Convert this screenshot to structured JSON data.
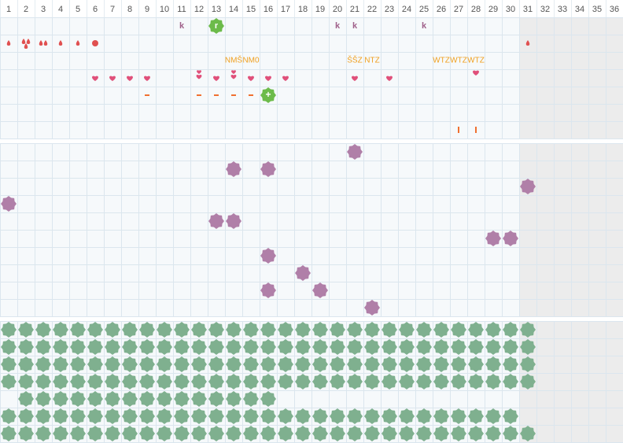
{
  "days": [
    "1",
    "2",
    "3",
    "4",
    "5",
    "6",
    "7",
    "8",
    "9",
    "10",
    "11",
    "12",
    "13",
    "14",
    "15",
    "16",
    "17",
    "18",
    "19",
    "20",
    "21",
    "22",
    "23",
    "24",
    "25",
    "26",
    "27",
    "28",
    "29",
    "30",
    "31",
    "32",
    "33",
    "34",
    "35",
    "36"
  ],
  "letters": [
    {
      "day": 11,
      "text": "k"
    },
    {
      "day": 13,
      "text": "r"
    },
    {
      "day": 20,
      "text": "k"
    },
    {
      "day": 21,
      "text": "k"
    },
    {
      "day": 25,
      "text": "k"
    }
  ],
  "drops": [
    {
      "day": 1,
      "count": 1
    },
    {
      "day": 2,
      "count": 3
    },
    {
      "day": 3,
      "count": 2
    },
    {
      "day": 4,
      "count": 1
    },
    {
      "day": 5,
      "count": 1
    },
    {
      "day": 31,
      "count": 1
    }
  ],
  "spots": [
    6
  ],
  "notes": [
    {
      "day": 14,
      "text": "NMŠ"
    },
    {
      "day": 15,
      "text": "NM0"
    },
    {
      "day": 21,
      "text": "ŠŠZ"
    },
    {
      "day": 22,
      "text": "NTZ"
    },
    {
      "day": 26,
      "text": "WTZ"
    },
    {
      "day": 27,
      "text": "WTZ"
    },
    {
      "day": 28,
      "text": "WTZ"
    }
  ],
  "hearts": [
    {
      "day": 6,
      "count": 1
    },
    {
      "day": 7,
      "count": 1
    },
    {
      "day": 8,
      "count": 1
    },
    {
      "day": 9,
      "count": 1
    },
    {
      "day": 12,
      "count": 2
    },
    {
      "day": 13,
      "count": 1
    },
    {
      "day": 14,
      "count": 2
    },
    {
      "day": 15,
      "count": 1
    },
    {
      "day": 16,
      "count": 1
    },
    {
      "day": 17,
      "count": 1
    },
    {
      "day": 21,
      "count": 1
    },
    {
      "day": 23,
      "count": 1
    },
    {
      "day": 28,
      "count": 1
    }
  ],
  "dashes": [
    9,
    12,
    13,
    14,
    15
  ],
  "plus": {
    "day": 16,
    "text": "+"
  },
  "bars": [
    27,
    28
  ],
  "purple_rows": [
    [
      21
    ],
    [
      14,
      16
    ],
    [
      31
    ],
    [
      1
    ],
    [
      13,
      14
    ],
    [
      29,
      30
    ],
    [
      16
    ],
    [
      18
    ],
    [
      16,
      19
    ],
    [
      22
    ]
  ],
  "green_rows": [
    {
      "start": 1,
      "end": 31
    },
    {
      "start": 1,
      "end": 31
    },
    {
      "start": 1,
      "end": 31
    },
    {
      "start": 1,
      "end": 31
    },
    {
      "start": 2,
      "end": 16
    },
    {
      "start": 1,
      "end": 30
    },
    {
      "start": 1,
      "end": 31
    }
  ]
}
